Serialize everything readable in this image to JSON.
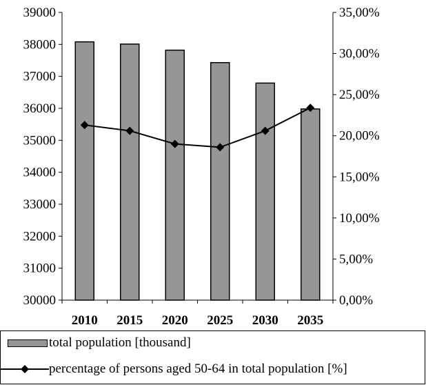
{
  "chart_data": {
    "type": "bar",
    "categories": [
      "2010",
      "2015",
      "2020",
      "2025",
      "2030",
      "2035"
    ],
    "series": [
      {
        "name": "total population [thousand]",
        "type": "bar",
        "axis": "left",
        "color": "#969696",
        "values": [
          38080,
          38010,
          37820,
          37430,
          36790,
          35980
        ]
      },
      {
        "name": "percentage of persons aged 50-64 in total population [%]",
        "type": "line",
        "axis": "right",
        "color": "#000000",
        "marker": "diamond",
        "values": [
          21.3,
          20.6,
          19.0,
          18.6,
          20.6,
          23.4
        ]
      }
    ],
    "y_left": {
      "ylim": [
        30000,
        39000
      ],
      "ticks": [
        "30000",
        "31000",
        "32000",
        "33000",
        "34000",
        "35000",
        "36000",
        "37000",
        "38000",
        "39000"
      ]
    },
    "y_right": {
      "ylim": [
        0,
        35
      ],
      "ticks": [
        "0,00%",
        "5,00%",
        "10,00%",
        "15,00%",
        "20,00%",
        "25,00%",
        "30,00%",
        "35,00%"
      ]
    },
    "grid": false,
    "legend_position": "bottom"
  },
  "legend": {
    "bar_label": "total population [thousand]",
    "line_label": "percentage of persons aged 50-64 in total population [%]"
  }
}
